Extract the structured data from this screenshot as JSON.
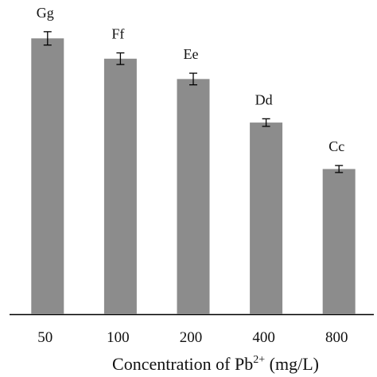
{
  "chart_data": {
    "type": "bar",
    "categories": [
      "50",
      "100",
      "200",
      "400",
      "800"
    ],
    "values": [
      95,
      88,
      81,
      66,
      50
    ],
    "errors": [
      2.3,
      2.0,
      2.0,
      1.3,
      1.2
    ],
    "annotations": [
      "Gg",
      "Ff",
      "Ee",
      "Dd",
      "Cc"
    ],
    "xlabel_prefix": "Concentration of Pb",
    "xlabel_sup": "2+",
    "xlabel_suffix": " (mg/L)",
    "ylim": [
      0,
      100
    ],
    "grid": false,
    "colors": {
      "bar": "#8c8c8c",
      "axis": "#000000"
    }
  }
}
